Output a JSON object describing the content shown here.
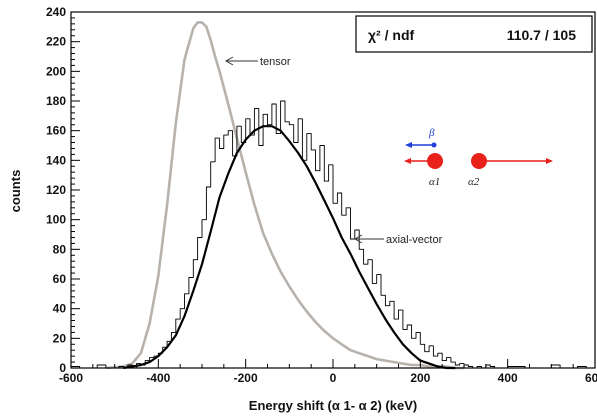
{
  "chart_data": {
    "type": "line",
    "xlabel": "Energy shift (α 1- α 2) (keV)",
    "ylabel": "counts",
    "xlim": [
      -600,
      600
    ],
    "ylim": [
      0,
      240
    ],
    "x_ticks": [
      "-600",
      "-400",
      "-200",
      "0",
      "200",
      "400",
      "600"
    ],
    "y_ticks": [
      "0",
      "20",
      "40",
      "60",
      "80",
      "100",
      "120",
      "140",
      "160",
      "180",
      "200",
      "220",
      "240"
    ],
    "grid": false,
    "stats_box": {
      "label": "χ² / ndf",
      "value": "110.7 / 105"
    },
    "annotations": [
      "tensor",
      "axial-vector"
    ],
    "inset": {
      "beta_label": "β",
      "alpha1_label": "α1",
      "alpha2_label": "α2"
    },
    "series": [
      {
        "name": "tensor",
        "style": "line",
        "color": "#b8b2ac",
        "x": [
          -520,
          -480,
          -460,
          -440,
          -420,
          -400,
          -380,
          -360,
          -340,
          -320,
          -310,
          -300,
          -290,
          -280,
          -270,
          -260,
          -240,
          -220,
          -200,
          -180,
          -160,
          -140,
          -120,
          -100,
          -80,
          -60,
          -40,
          -20,
          0,
          20,
          40,
          60,
          80,
          100,
          120,
          140,
          160,
          180,
          200,
          220,
          240,
          260,
          280,
          300
        ],
        "y": [
          0,
          1,
          3,
          10,
          30,
          62,
          110,
          165,
          208,
          229,
          233,
          233,
          230,
          221,
          210,
          200,
          178,
          155,
          132,
          110,
          91,
          77,
          65,
          55,
          46,
          38,
          31,
          25,
          20,
          16,
          12,
          10,
          8,
          6,
          5,
          4,
          3,
          2,
          2,
          1,
          1,
          1,
          0,
          0
        ]
      },
      {
        "name": "axial-vector",
        "style": "line",
        "color": "#000000",
        "x": [
          -480,
          -460,
          -440,
          -420,
          -400,
          -380,
          -360,
          -340,
          -320,
          -300,
          -280,
          -260,
          -240,
          -220,
          -200,
          -180,
          -160,
          -140,
          -120,
          -100,
          -80,
          -60,
          -40,
          -20,
          0,
          20,
          40,
          60,
          80,
          100,
          120,
          140,
          160,
          180,
          200,
          220,
          240,
          260,
          280
        ],
        "y": [
          0,
          1,
          2,
          4,
          8,
          14,
          22,
          35,
          52,
          70,
          92,
          115,
          131,
          145,
          154,
          160,
          163,
          163,
          160,
          153,
          145,
          136,
          125,
          113,
          101,
          88,
          77,
          65,
          54,
          43,
          33,
          24,
          16,
          10,
          5,
          3,
          1,
          0,
          0
        ]
      },
      {
        "name": "data",
        "style": "step",
        "color": "#000000",
        "x": [
          -600,
          -580,
          -560,
          -540,
          -520,
          -500,
          -490,
          -480,
          -470,
          -460,
          -450,
          -440,
          -430,
          -420,
          -410,
          -400,
          -390,
          -380,
          -370,
          -360,
          -350,
          -340,
          -330,
          -320,
          -310,
          -300,
          -290,
          -280,
          -270,
          -260,
          -250,
          -240,
          -230,
          -220,
          -210,
          -200,
          -190,
          -180,
          -170,
          -160,
          -150,
          -140,
          -130,
          -120,
          -110,
          -100,
          -90,
          -80,
          -70,
          -60,
          -50,
          -40,
          -30,
          -20,
          -10,
          0,
          10,
          20,
          30,
          40,
          50,
          60,
          70,
          80,
          90,
          100,
          110,
          120,
          130,
          140,
          150,
          160,
          170,
          180,
          190,
          200,
          210,
          220,
          230,
          240,
          250,
          260,
          270,
          280,
          290,
          300,
          310,
          320,
          330,
          340,
          350,
          360,
          370,
          380,
          390,
          400,
          420,
          440,
          460,
          480,
          500,
          520,
          540,
          560,
          580
        ],
        "y": [
          1,
          0,
          0,
          2,
          0,
          0,
          1,
          0,
          2,
          1,
          3,
          2,
          5,
          7,
          8,
          10,
          14,
          18,
          24,
          33,
          40,
          50,
          61,
          73,
          88,
          100,
          122,
          139,
          155,
          148,
          157,
          160,
          143,
          163,
          152,
          168,
          157,
          175,
          150,
          171,
          164,
          178,
          158,
          180,
          166,
          164,
          152,
          168,
          140,
          158,
          147,
          133,
          150,
          126,
          137,
          111,
          118,
          103,
          108,
          87,
          93,
          80,
          70,
          73,
          57,
          63,
          49,
          42,
          45,
          33,
          39,
          26,
          29,
          20,
          24,
          16,
          11,
          15,
          8,
          10,
          5,
          7,
          4,
          2,
          3,
          2,
          1,
          0,
          1,
          0,
          2,
          1,
          0,
          0,
          0,
          1,
          1,
          0,
          0,
          0,
          2,
          0,
          0,
          1,
          0
        ]
      }
    ]
  }
}
